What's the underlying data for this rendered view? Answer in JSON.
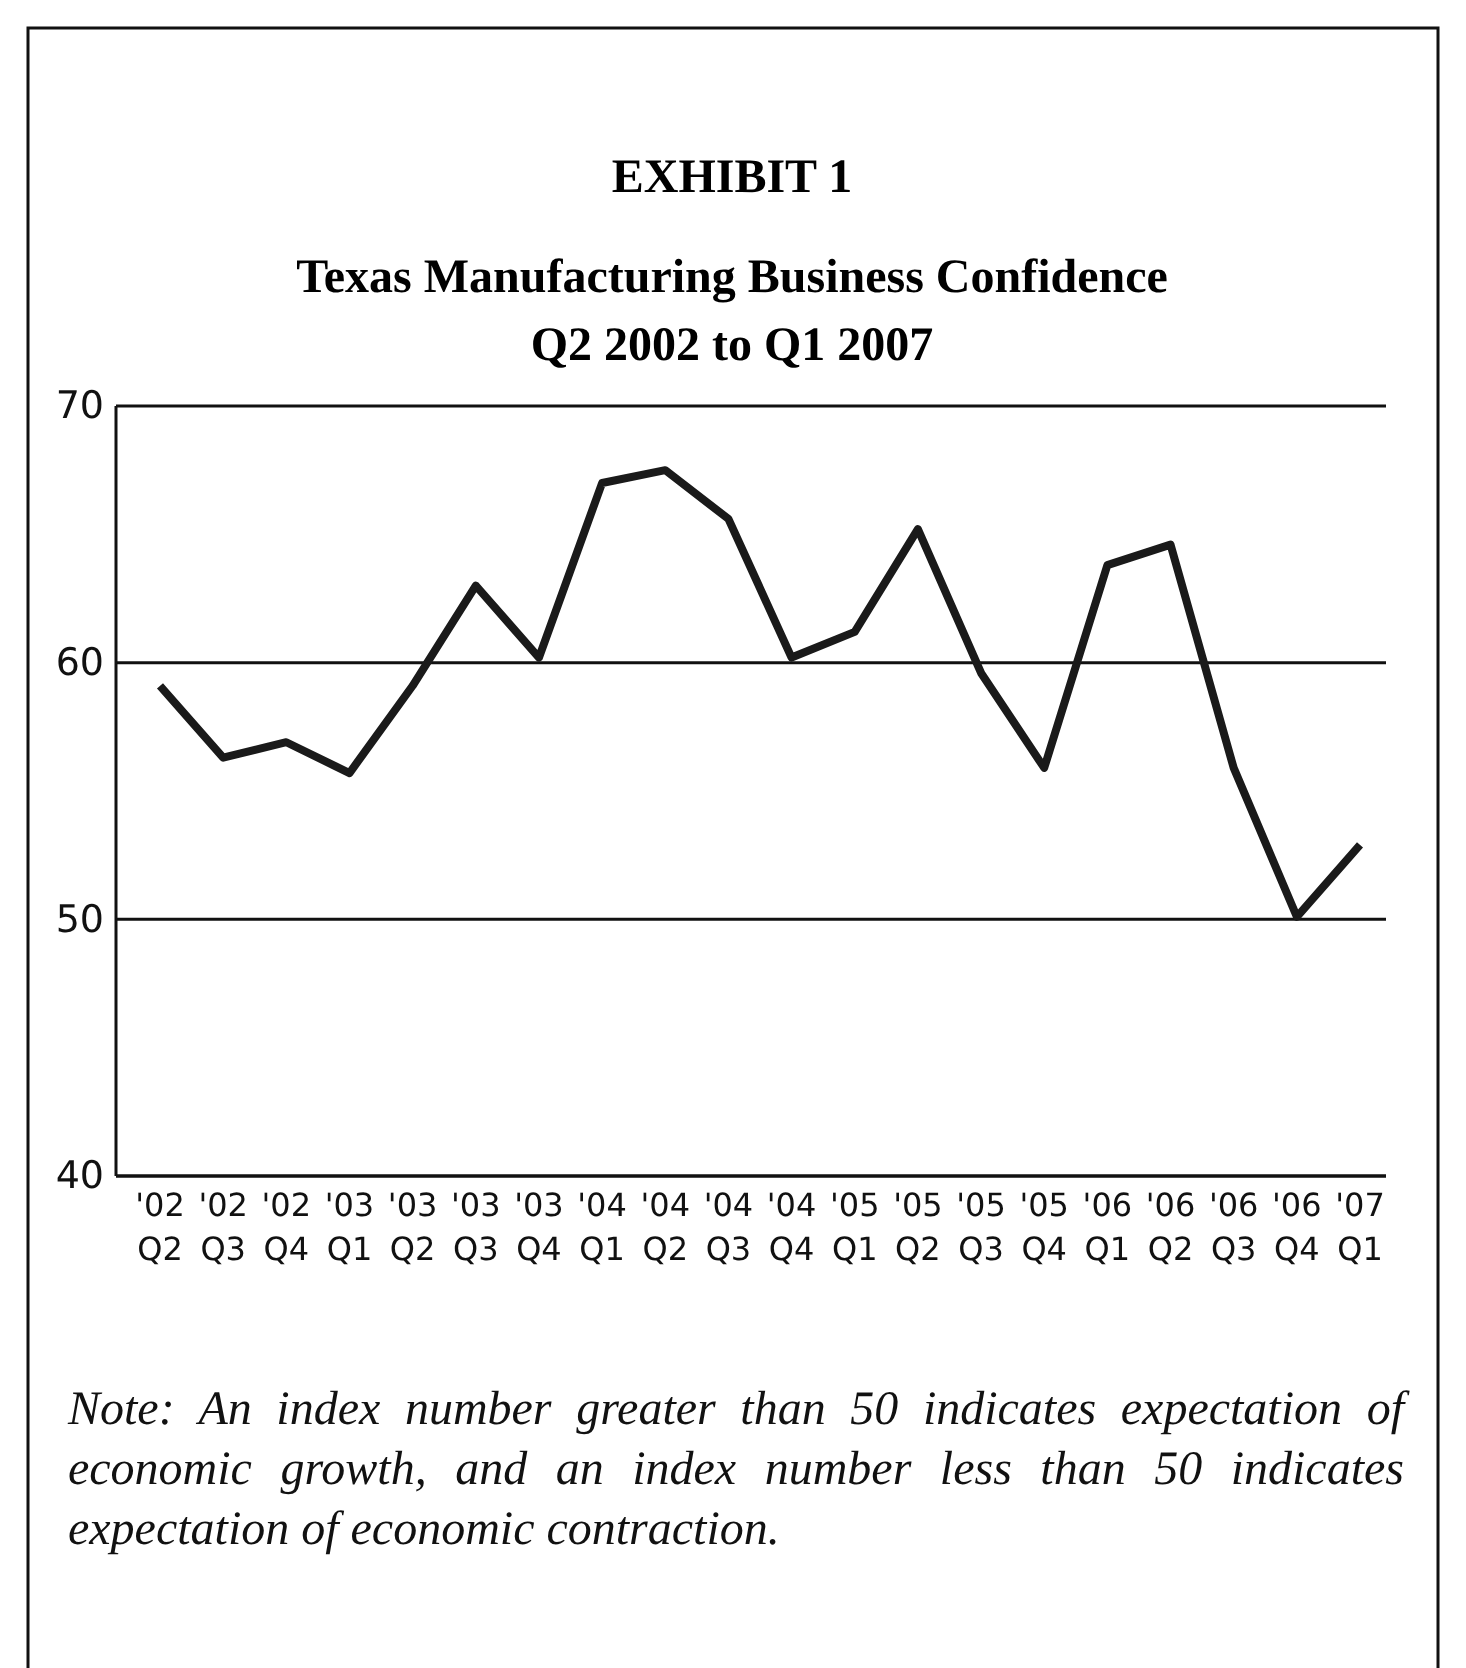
{
  "chart_data": {
    "type": "line",
    "title": "EXHIBIT 1",
    "subtitle": "Texas Manufacturing Business Confidence\nQ2 2002 to Q1 2007",
    "categories": [
      "'02\nQ2",
      "'02\nQ3",
      "'02\nQ4",
      "'03\nQ1",
      "'03\nQ2",
      "'03\nQ3",
      "'03\nQ4",
      "'04\nQ1",
      "'04\nQ2",
      "'04\nQ3",
      "'04\nQ4",
      "'05\nQ1",
      "'05\nQ2",
      "'05\nQ3",
      "'05\nQ4",
      "'06\nQ1",
      "'06\nQ2",
      "'06\nQ3",
      "'06\nQ4",
      "'07\nQ1"
    ],
    "series": [
      {
        "color": "#1a1a1a",
        "values": [
          59.1,
          56.3,
          56.9,
          55.7,
          59.1,
          63.0,
          60.2,
          67.0,
          67.5,
          65.6,
          60.2,
          61.2,
          65.2,
          59.6,
          55.9,
          63.8,
          64.6,
          55.9,
          50.1,
          52.9
        ]
      }
    ],
    "ylim": [
      40,
      70
    ],
    "yticks": [
      40,
      50,
      60,
      70
    ],
    "grid": "y",
    "marker": "none",
    "line_style": "solid",
    "annotations": [
      "Note: An index number greater than 50 indicates expectation of economic growth, and an index number less than 50 indicates expectation of economic contraction."
    ]
  }
}
